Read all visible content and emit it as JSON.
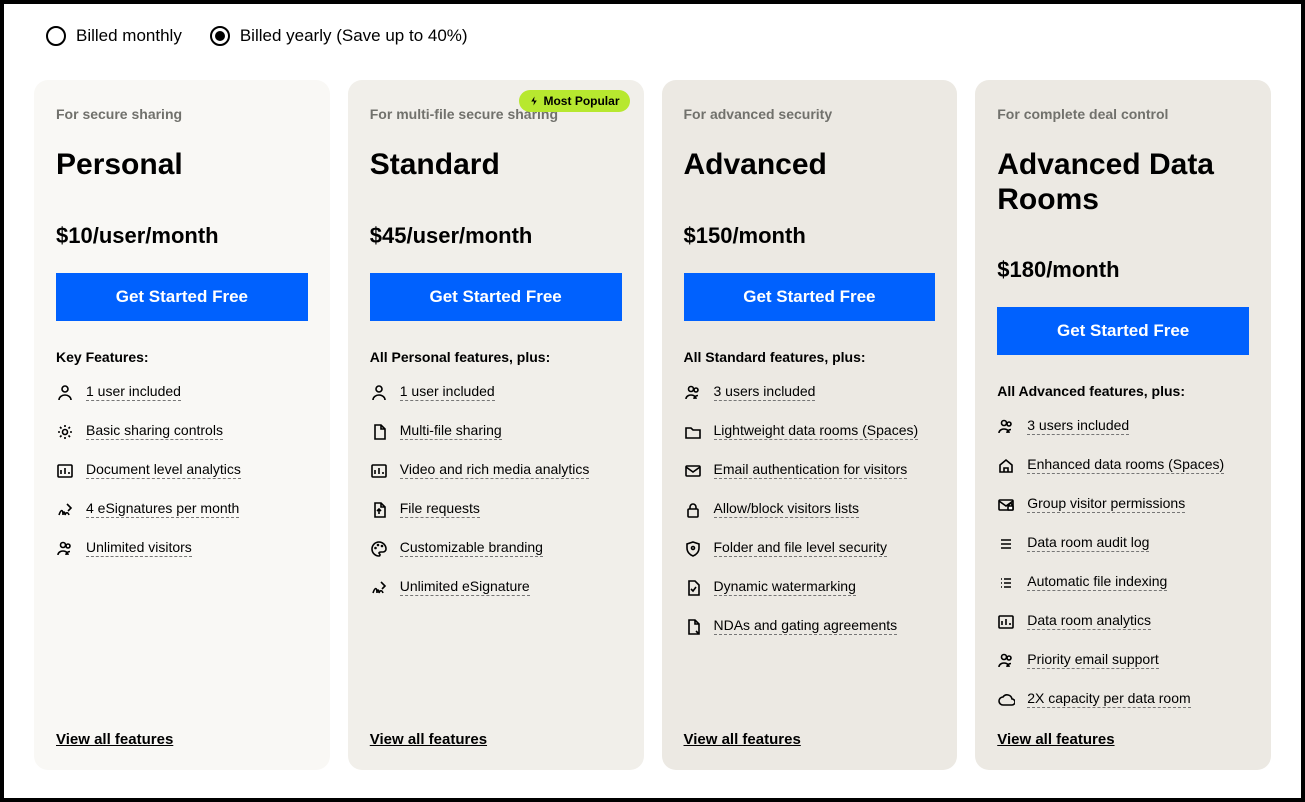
{
  "billing": {
    "monthly_label": "Billed monthly",
    "yearly_label": "Billed yearly (Save up to 40%)",
    "selected": "yearly"
  },
  "colors": {
    "card_bg_light": "#f9f8f5",
    "card_bg_med": "#f1efea",
    "card_bg_dark": "#ece9e3",
    "primary_button": "#0061fe",
    "badge_bg": "#b7e82f",
    "tagline": "#71716c"
  },
  "cta_label": "Get Started Free",
  "view_all_label": "View all features",
  "most_popular_label": "Most Popular",
  "plans": [
    {
      "tagline": "For secure sharing",
      "name": "Personal",
      "price": "$10/user/month",
      "bg": "#f9f8f5",
      "badge": false,
      "features_heading": "Key Features:",
      "features": [
        {
          "icon": "user",
          "label": "1 user included"
        },
        {
          "icon": "gear",
          "label": "Basic sharing controls"
        },
        {
          "icon": "chart",
          "label": "Document level analytics"
        },
        {
          "icon": "signature",
          "label": "4 eSignatures per month"
        },
        {
          "icon": "users",
          "label": "Unlimited visitors"
        }
      ]
    },
    {
      "tagline": "For multi-file secure sharing",
      "name": "Standard",
      "price": "$45/user/month",
      "bg": "#f1efea",
      "badge": true,
      "features_heading": "All Personal features, plus:",
      "features": [
        {
          "icon": "user",
          "label": "1 user included"
        },
        {
          "icon": "file",
          "label": "Multi-file sharing"
        },
        {
          "icon": "chart",
          "label": "Video and rich media analytics"
        },
        {
          "icon": "file-up",
          "label": "File requests"
        },
        {
          "icon": "palette",
          "label": "Customizable branding"
        },
        {
          "icon": "signature",
          "label": "Unlimited eSignature"
        }
      ]
    },
    {
      "tagline": "For advanced security",
      "name": "Advanced",
      "price": "$150/month",
      "bg": "#ece9e3",
      "badge": false,
      "features_heading": "All Standard features, plus:",
      "features": [
        {
          "icon": "users",
          "label": "3 users included"
        },
        {
          "icon": "folder",
          "label": "Lightweight data rooms (Spaces)"
        },
        {
          "icon": "mail",
          "label": "Email authentication for visitors"
        },
        {
          "icon": "lock",
          "label": "Allow/block visitors lists"
        },
        {
          "icon": "shield",
          "label": "Folder and file level security"
        },
        {
          "icon": "watermark",
          "label": "Dynamic watermarking"
        },
        {
          "icon": "nda",
          "label": "NDAs and gating agreements"
        }
      ]
    },
    {
      "tagline": "For complete deal control",
      "name": "Advanced Data Rooms",
      "price": "$180/month",
      "bg": "#ece9e3",
      "badge": false,
      "features_heading": "All Advanced features, plus:",
      "features": [
        {
          "icon": "users",
          "label": "3 users included"
        },
        {
          "icon": "home",
          "label": "Enhanced data rooms (Spaces)"
        },
        {
          "icon": "mail-lock",
          "label": "Group visitor permissions"
        },
        {
          "icon": "list",
          "label": "Data room audit log"
        },
        {
          "icon": "index",
          "label": "Automatic file indexing"
        },
        {
          "icon": "chart",
          "label": "Data room analytics"
        },
        {
          "icon": "users",
          "label": "Priority email support"
        },
        {
          "icon": "cloud",
          "label": "2X capacity per data room"
        }
      ]
    }
  ]
}
